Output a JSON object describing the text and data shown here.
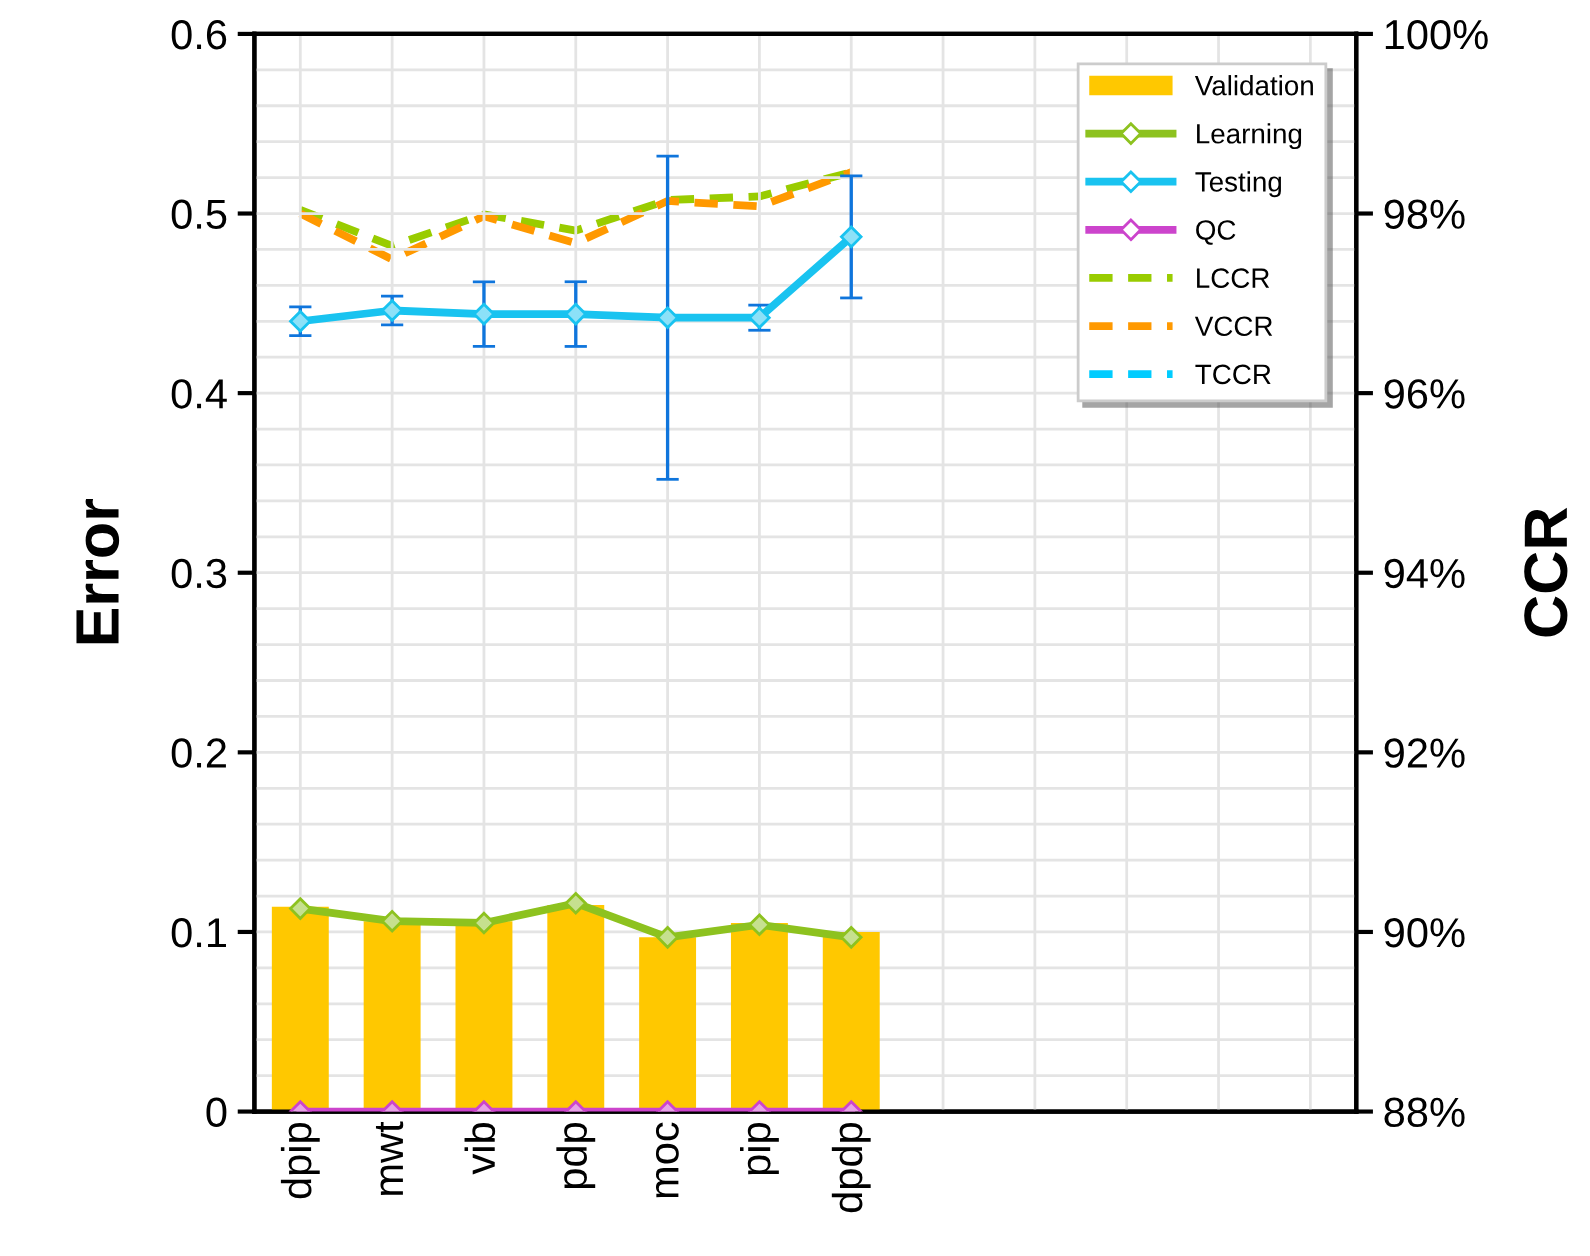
{
  "chart_data": {
    "type": "bar",
    "ylabel": "Error",
    "y2label": "CCR",
    "categories": [
      "dpip",
      "mwt",
      "vib",
      "pdp",
      "moc",
      "pip",
      "dpdp",
      null,
      null,
      null,
      null,
      null
    ],
    "ylim": [
      0,
      0.6
    ],
    "yticks": [
      0,
      0.1,
      0.2,
      0.3,
      0.4,
      0.5,
      0.6
    ],
    "y2lim": [
      88,
      100
    ],
    "y2ticks": [
      {
        "value": 88,
        "label": "88%"
      },
      {
        "value": 90,
        "label": "90%"
      },
      {
        "value": 92,
        "label": "92%"
      },
      {
        "value": 94,
        "label": "94%"
      },
      {
        "value": 96,
        "label": "96%"
      },
      {
        "value": 98,
        "label": "98%"
      },
      {
        "value": 100,
        "label": "100%"
      }
    ],
    "grid": true,
    "legend": "top right",
    "series": [
      {
        "name": "Validation",
        "color": "#ffc800",
        "values": [
          0.114,
          0.106,
          0.106,
          0.115,
          0.097,
          0.105,
          0.1,
          null,
          null,
          null,
          null,
          null
        ]
      },
      {
        "name": "Learning",
        "type": "line",
        "color": "#8dc21f",
        "marker": "diamond",
        "line_style": "solid",
        "values": [
          0.113,
          0.106,
          0.105,
          0.116,
          0.097,
          0.104,
          0.097,
          null,
          null,
          null,
          null,
          null
        ]
      },
      {
        "name": "Testing",
        "type": "line",
        "color": "#19c3f0",
        "marker": "diamond",
        "line_style": "solid",
        "values": [
          0.44,
          0.446,
          0.444,
          0.444,
          0.442,
          0.442,
          0.487,
          null,
          null,
          null,
          null,
          null
        ],
        "errors": [
          0.008,
          0.008,
          0.018,
          0.018,
          0.09,
          0.007,
          0.034,
          null,
          null,
          null,
          null,
          null
        ]
      },
      {
        "name": "QC",
        "type": "line",
        "color": "#cc44cc",
        "marker": "diamond",
        "line_style": "solid",
        "values": [
          0,
          0,
          0,
          0,
          0,
          0,
          0,
          null,
          null,
          null,
          null,
          null
        ]
      },
      {
        "name": "LCCR",
        "type": "line",
        "axis": "y2",
        "color": "#99cc00",
        "marker": "none",
        "line_style": "dashed",
        "values": [
          98.04,
          97.64,
          97.99,
          97.81,
          98.15,
          98.19,
          98.46,
          null,
          null,
          null,
          null,
          null
        ]
      },
      {
        "name": "VCCR",
        "type": "line",
        "axis": "y2",
        "color": "#ff9900",
        "marker": "none",
        "line_style": "dashed",
        "values": [
          98.0,
          97.49,
          97.97,
          97.67,
          98.14,
          98.08,
          98.46,
          null,
          null,
          null,
          null,
          null
        ]
      },
      {
        "name": "TCCR",
        "type": "line",
        "axis": "y2",
        "color": "#00ccff",
        "marker": "none",
        "line_style": "dashed",
        "values": [
          null,
          null,
          null,
          null,
          null,
          null,
          null,
          null,
          null,
          null,
          null,
          null
        ]
      }
    ]
  }
}
